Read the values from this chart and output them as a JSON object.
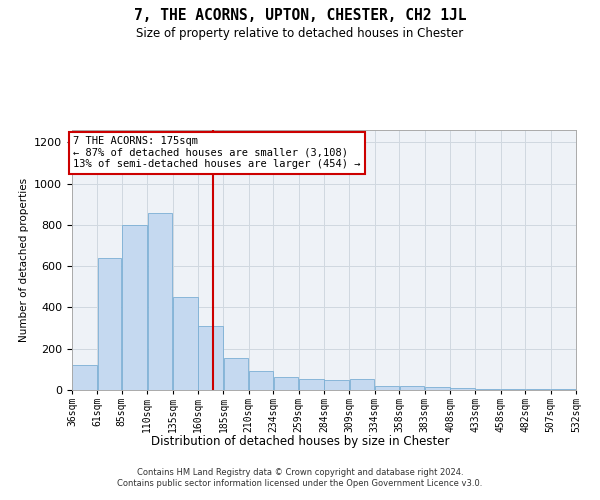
{
  "title": "7, THE ACORNS, UPTON, CHESTER, CH2 1JL",
  "subtitle": "Size of property relative to detached houses in Chester",
  "xlabel": "Distribution of detached houses by size in Chester",
  "ylabel": "Number of detached properties",
  "footer_line1": "Contains HM Land Registry data © Crown copyright and database right 2024.",
  "footer_line2": "Contains public sector information licensed under the Open Government Licence v3.0.",
  "annotation_line1": "7 THE ACORNS: 175sqm",
  "annotation_line2": "← 87% of detached houses are smaller (3,108)",
  "annotation_line3": "13% of semi-detached houses are larger (454) →",
  "bar_left_edges": [
    36,
    61,
    85,
    110,
    135,
    160,
    185,
    210,
    234,
    259,
    284,
    309,
    334,
    358,
    383,
    408,
    433,
    458,
    482,
    507
  ],
  "bar_widths": [
    25,
    24,
    25,
    25,
    25,
    25,
    25,
    24,
    25,
    25,
    25,
    25,
    24,
    25,
    25,
    25,
    25,
    24,
    25,
    25
  ],
  "bar_heights": [
    120,
    640,
    800,
    860,
    450,
    310,
    155,
    90,
    65,
    55,
    50,
    55,
    20,
    20,
    15,
    10,
    5,
    5,
    5,
    5
  ],
  "bar_color": "#c5d9f0",
  "bar_edge_color": "#7bafd4",
  "property_size": 175,
  "vline_color": "#cc0000",
  "grid_color": "#d0d8e0",
  "background_color": "#eef2f7",
  "ylim": [
    0,
    1260
  ],
  "yticks": [
    0,
    200,
    400,
    600,
    800,
    1000,
    1200
  ],
  "tick_labels": [
    "36sqm",
    "61sqm",
    "85sqm",
    "110sqm",
    "135sqm",
    "160sqm",
    "185sqm",
    "210sqm",
    "234sqm",
    "259sqm",
    "284sqm",
    "309sqm",
    "334sqm",
    "358sqm",
    "383sqm",
    "408sqm",
    "433sqm",
    "458sqm",
    "482sqm",
    "507sqm",
    "532sqm"
  ]
}
